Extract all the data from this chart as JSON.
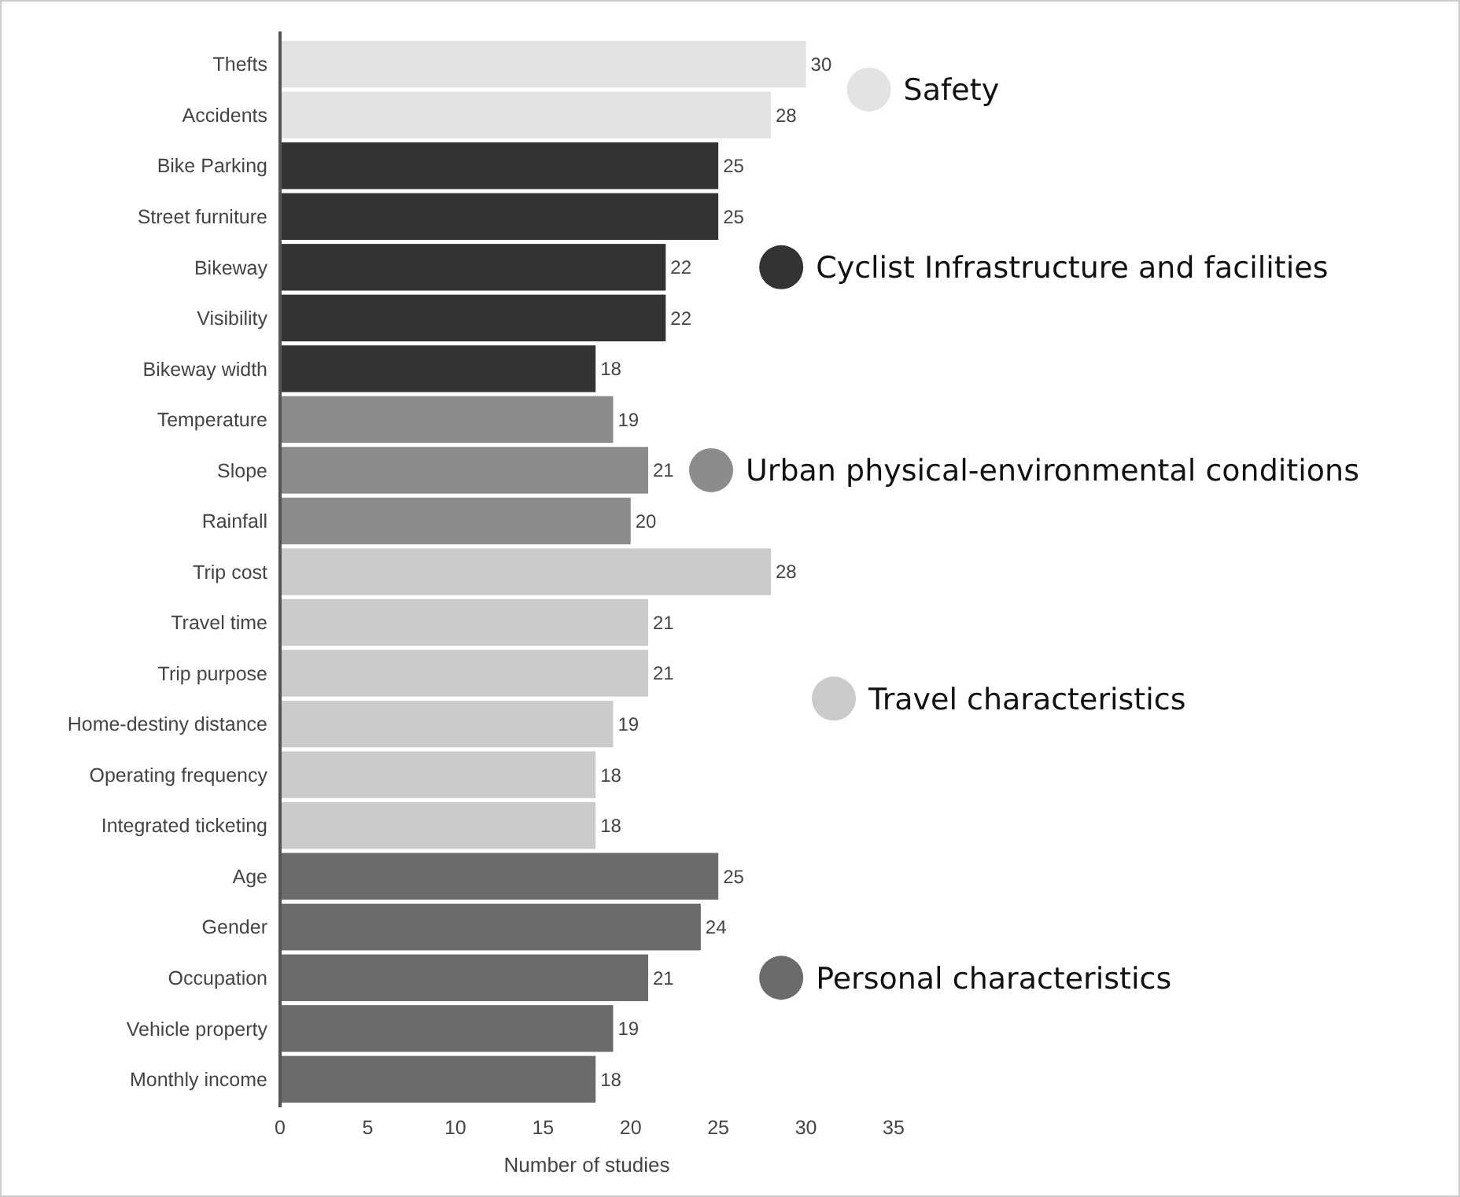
{
  "chart_data": {
    "type": "bar",
    "orientation": "horizontal",
    "xlabel": "Number of studies",
    "categories": [
      "Thefts",
      "Accidents",
      "Bike Parking",
      "Street furniture",
      "Bikeway",
      "Visibility",
      "Bikeway width",
      "Temperature",
      "Slope",
      "Rainfall",
      "Trip cost",
      "Travel time",
      "Trip purpose",
      "Home-destiny distance",
      "Operating frequency",
      "Integrated ticketing",
      "Age",
      "Gender",
      "Occupation",
      "Vehicle property",
      "Monthly income"
    ],
    "series": [
      {
        "name": "Safety",
        "color": "#e3e3e3",
        "values": [
          30,
          28,
          null,
          null,
          null,
          null,
          null,
          null,
          null,
          null,
          null,
          null,
          null,
          null,
          null,
          null,
          null,
          null,
          null,
          null,
          null
        ]
      },
      {
        "name": "Cyclist Infrastructure and facilities",
        "color": "#333333",
        "values": [
          null,
          null,
          25,
          25,
          22,
          22,
          18,
          null,
          null,
          null,
          null,
          null,
          null,
          null,
          null,
          null,
          null,
          null,
          null,
          null,
          null
        ]
      },
      {
        "name": "Urban physical-environmental conditions",
        "color": "#8c8c8c",
        "values": [
          null,
          null,
          null,
          null,
          null,
          null,
          null,
          19,
          21,
          20,
          null,
          null,
          null,
          null,
          null,
          null,
          null,
          null,
          null,
          null,
          null
        ]
      },
      {
        "name": "Travel characteristics",
        "color": "#cbcbcb",
        "values": [
          null,
          null,
          null,
          null,
          null,
          null,
          null,
          null,
          null,
          null,
          28,
          21,
          21,
          19,
          18,
          18,
          null,
          null,
          null,
          null,
          null
        ]
      },
      {
        "name": "Personal characteristics",
        "color": "#6b6b6b",
        "values": [
          null,
          null,
          null,
          null,
          null,
          null,
          null,
          null,
          null,
          null,
          null,
          null,
          null,
          null,
          null,
          null,
          25,
          24,
          21,
          19,
          18
        ]
      }
    ],
    "xlim": [
      0,
      35
    ],
    "xticks": [
      0,
      5,
      10,
      15,
      20,
      25,
      30,
      35
    ],
    "data_labels": true,
    "legend": "right",
    "grid": false
  }
}
